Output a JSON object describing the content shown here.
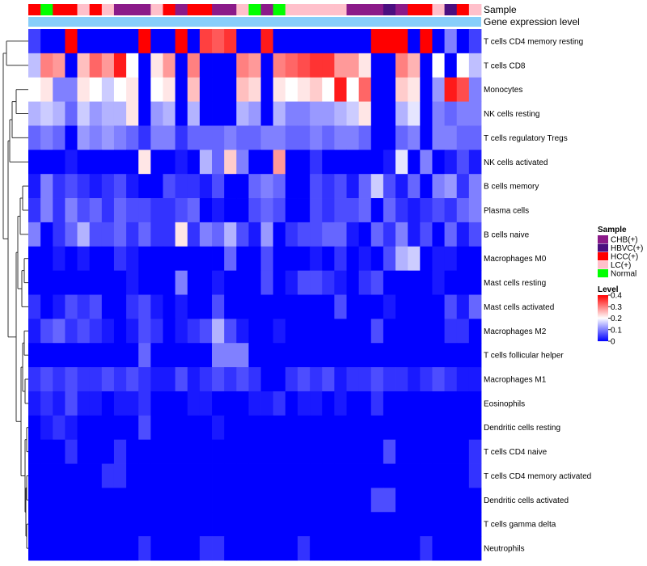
{
  "chart_data": {
    "type": "heatmap",
    "title": "",
    "annotation_labels": [
      "Sample",
      "Gene expression level"
    ],
    "sample_legend": {
      "title": "Sample",
      "entries": [
        {
          "label": "CHB(+)",
          "color": "#8B1A89"
        },
        {
          "label": "HBVC(+)",
          "color": "#4B0F80"
        },
        {
          "label": "HCC(+)",
          "color": "#FF0000"
        },
        {
          "label": "LC(+)",
          "color": "#FFC0CB"
        },
        {
          "label": "Normal",
          "color": "#00FF00"
        }
      ]
    },
    "level_legend": {
      "title": "Level",
      "ticks": [
        "0.4",
        "0.3",
        "0.2",
        "0.1",
        "0"
      ],
      "range": [
        0,
        0.4
      ]
    },
    "gene_expression_color": "#87CEFA",
    "samples": [
      "HCC(+)",
      "Normal",
      "HCC(+)",
      "HCC(+)",
      "LC(+)",
      "HCC(+)",
      "LC(+)",
      "CHB(+)",
      "CHB(+)",
      "CHB(+)",
      "LC(+)",
      "HCC(+)",
      "CHB(+)",
      "HCC(+)",
      "HCC(+)",
      "CHB(+)",
      "CHB(+)",
      "LC(+)",
      "Normal",
      "CHB(+)",
      "Normal",
      "LC(+)",
      "LC(+)",
      "LC(+)",
      "LC(+)",
      "LC(+)",
      "CHB(+)",
      "CHB(+)",
      "CHB(+)",
      "HBVC(+)",
      "CHB(+)",
      "HCC(+)",
      "HCC(+)",
      "LC(+)",
      "HBVC(+)",
      "HCC(+)",
      "LC(+)"
    ],
    "rows": [
      "T cells CD4 memory resting",
      "T cells CD8",
      "Monocytes",
      "NK cells resting",
      "T cells regulatory  Tregs",
      "NK cells activated",
      "B cells memory",
      "Plasma cells",
      "B cells naive",
      "Macrophages M0",
      "Mast cells resting",
      "Mast cells activated",
      "Macrophages M2",
      "T cells follicular helper",
      "Macrophages M1",
      "Eosinophils",
      "Dendritic cells resting",
      "T cells CD4 naive",
      "T cells CD4 memory activated",
      "Dendritic cells activated",
      "T cells gamma delta",
      "Neutrophils"
    ],
    "values": [
      [
        0.05,
        0.0,
        0.0,
        0.4,
        0.0,
        0.0,
        0.0,
        0.0,
        0.0,
        0.4,
        0.0,
        0.0,
        0.4,
        0.0,
        0.35,
        0.33,
        0.36,
        0.0,
        0.0,
        0.38,
        0.0,
        0.0,
        0.0,
        0.0,
        0.0,
        0.0,
        0.0,
        0.0,
        0.4,
        0.4,
        0.4,
        0.0,
        0.4,
        0.0,
        0.1,
        0.0,
        0.05
      ],
      [
        0.15,
        0.3,
        0.28,
        0.0,
        0.25,
        0.32,
        0.28,
        0.38,
        0.2,
        0.0,
        0.22,
        0.28,
        0.0,
        0.3,
        0.0,
        0.0,
        0.0,
        0.3,
        0.28,
        0.0,
        0.3,
        0.32,
        0.34,
        0.36,
        0.36,
        0.28,
        0.28,
        0.22,
        0.0,
        0.0,
        0.3,
        0.26,
        0.0,
        0.2,
        0.0,
        0.2,
        0.15
      ],
      [
        0.2,
        0.22,
        0.1,
        0.1,
        0.22,
        0.2,
        0.16,
        0.2,
        0.22,
        0.0,
        0.2,
        0.22,
        0.0,
        0.25,
        0.0,
        0.0,
        0.0,
        0.25,
        0.23,
        0.0,
        0.22,
        0.2,
        0.22,
        0.24,
        0.2,
        0.38,
        0.2,
        0.32,
        0.0,
        0.0,
        0.24,
        0.22,
        0.0,
        0.12,
        0.38,
        0.34,
        0.1
      ],
      [
        0.14,
        0.16,
        0.14,
        0.08,
        0.16,
        0.12,
        0.14,
        0.14,
        0.22,
        0.0,
        0.12,
        0.14,
        0.0,
        0.14,
        0.0,
        0.0,
        0.0,
        0.14,
        0.12,
        0.0,
        0.14,
        0.1,
        0.1,
        0.12,
        0.12,
        0.14,
        0.16,
        0.22,
        0.0,
        0.0,
        0.14,
        0.18,
        0.0,
        0.1,
        0.08,
        0.1,
        0.1
      ],
      [
        0.08,
        0.1,
        0.08,
        0.0,
        0.12,
        0.1,
        0.12,
        0.1,
        0.08,
        0.04,
        0.1,
        0.1,
        0.04,
        0.08,
        0.08,
        0.08,
        0.1,
        0.08,
        0.08,
        0.1,
        0.1,
        0.08,
        0.08,
        0.1,
        0.08,
        0.1,
        0.1,
        0.08,
        0.0,
        0.0,
        0.08,
        0.1,
        0.0,
        0.1,
        0.1,
        0.08,
        0.08
      ],
      [
        0.0,
        0.0,
        0.0,
        0.02,
        0.0,
        0.0,
        0.0,
        0.0,
        0.0,
        0.22,
        0.0,
        0.0,
        0.02,
        0.0,
        0.14,
        0.08,
        0.24,
        0.1,
        0.0,
        0.0,
        0.28,
        0.0,
        0.0,
        0.04,
        0.0,
        0.0,
        0.0,
        0.0,
        0.0,
        0.02,
        0.18,
        0.0,
        0.1,
        0.0,
        0.02,
        0.06,
        0.02
      ],
      [
        0.02,
        0.1,
        0.04,
        0.06,
        0.04,
        0.02,
        0.04,
        0.06,
        0.02,
        0.0,
        0.0,
        0.06,
        0.04,
        0.04,
        0.02,
        0.06,
        0.0,
        0.0,
        0.08,
        0.1,
        0.08,
        0.0,
        0.0,
        0.06,
        0.04,
        0.06,
        0.02,
        0.08,
        0.16,
        0.06,
        0.02,
        0.08,
        0.0,
        0.1,
        0.12,
        0.04,
        0.1
      ],
      [
        0.04,
        0.1,
        0.04,
        0.1,
        0.06,
        0.08,
        0.04,
        0.08,
        0.06,
        0.06,
        0.04,
        0.04,
        0.06,
        0.08,
        0.0,
        0.02,
        0.0,
        0.0,
        0.06,
        0.08,
        0.06,
        0.0,
        0.0,
        0.06,
        0.04,
        0.06,
        0.06,
        0.08,
        0.0,
        0.08,
        0.04,
        0.02,
        0.04,
        0.06,
        0.04,
        0.08,
        0.1
      ],
      [
        0.1,
        0.0,
        0.04,
        0.08,
        0.14,
        0.06,
        0.06,
        0.08,
        0.04,
        0.08,
        0.04,
        0.04,
        0.22,
        0.04,
        0.1,
        0.08,
        0.14,
        0.06,
        0.02,
        0.12,
        0.0,
        0.04,
        0.06,
        0.06,
        0.08,
        0.08,
        0.02,
        0.0,
        0.08,
        0.04,
        0.1,
        0.02,
        0.06,
        0.0,
        0.08,
        0.02,
        0.06
      ],
      [
        0.0,
        0.0,
        0.02,
        0.0,
        0.02,
        0.0,
        0.0,
        0.04,
        0.02,
        0.0,
        0.0,
        0.0,
        0.0,
        0.0,
        0.0,
        0.0,
        0.08,
        0.0,
        0.0,
        0.06,
        0.0,
        0.0,
        0.0,
        0.02,
        0.0,
        0.04,
        0.0,
        0.02,
        0.0,
        0.06,
        0.14,
        0.16,
        0.0,
        0.02,
        0.02,
        0.0,
        0.0
      ],
      [
        0.0,
        0.0,
        0.0,
        0.0,
        0.0,
        0.0,
        0.0,
        0.0,
        0.02,
        0.0,
        0.0,
        0.0,
        0.1,
        0.0,
        0.0,
        0.02,
        0.0,
        0.0,
        0.0,
        0.06,
        0.0,
        0.02,
        0.06,
        0.06,
        0.04,
        0.02,
        0.0,
        0.04,
        0.06,
        0.0,
        0.0,
        0.0,
        0.0,
        0.02,
        0.0,
        0.0,
        0.0
      ],
      [
        0.04,
        0.0,
        0.02,
        0.06,
        0.04,
        0.06,
        0.0,
        0.0,
        0.04,
        0.06,
        0.02,
        0.0,
        0.02,
        0.0,
        0.0,
        0.06,
        0.0,
        0.0,
        0.0,
        0.0,
        0.0,
        0.0,
        0.0,
        0.0,
        0.0,
        0.06,
        0.0,
        0.0,
        0.0,
        0.02,
        0.0,
        0.0,
        0.0,
        0.0,
        0.06,
        0.02,
        0.08
      ],
      [
        0.02,
        0.06,
        0.08,
        0.04,
        0.06,
        0.04,
        0.02,
        0.0,
        0.02,
        0.06,
        0.04,
        0.0,
        0.02,
        0.04,
        0.06,
        0.14,
        0.06,
        0.02,
        0.0,
        0.0,
        0.02,
        0.0,
        0.0,
        0.0,
        0.0,
        0.0,
        0.0,
        0.0,
        0.06,
        0.0,
        0.0,
        0.0,
        0.0,
        0.0,
        0.04,
        0.04,
        0.0
      ],
      [
        0.0,
        0.0,
        0.0,
        0.0,
        0.0,
        0.0,
        0.0,
        0.0,
        0.0,
        0.08,
        0.0,
        0.0,
        0.0,
        0.0,
        0.0,
        0.1,
        0.1,
        0.1,
        0.0,
        0.0,
        0.0,
        0.0,
        0.0,
        0.0,
        0.0,
        0.0,
        0.0,
        0.0,
        0.0,
        0.0,
        0.0,
        0.0,
        0.0,
        0.0,
        0.0,
        0.0,
        0.0
      ],
      [
        0.04,
        0.06,
        0.04,
        0.06,
        0.04,
        0.04,
        0.06,
        0.04,
        0.06,
        0.04,
        0.02,
        0.02,
        0.06,
        0.02,
        0.04,
        0.06,
        0.04,
        0.06,
        0.04,
        0.0,
        0.0,
        0.04,
        0.06,
        0.04,
        0.06,
        0.02,
        0.04,
        0.04,
        0.06,
        0.04,
        0.04,
        0.02,
        0.04,
        0.06,
        0.04,
        0.02,
        0.02
      ],
      [
        0.02,
        0.04,
        0.02,
        0.06,
        0.02,
        0.02,
        0.0,
        0.02,
        0.02,
        0.04,
        0.0,
        0.0,
        0.0,
        0.02,
        0.02,
        0.0,
        0.0,
        0.0,
        0.02,
        0.02,
        0.04,
        0.0,
        0.02,
        0.02,
        0.0,
        0.02,
        0.0,
        0.0,
        0.04,
        0.0,
        0.0,
        0.0,
        0.0,
        0.0,
        0.0,
        0.0,
        0.0
      ],
      [
        0.0,
        0.02,
        0.04,
        0.02,
        0.0,
        0.0,
        0.0,
        0.0,
        0.0,
        0.06,
        0.0,
        0.0,
        0.0,
        0.0,
        0.0,
        0.02,
        0.0,
        0.0,
        0.0,
        0.0,
        0.0,
        0.0,
        0.0,
        0.0,
        0.0,
        0.0,
        0.0,
        0.0,
        0.0,
        0.0,
        0.0,
        0.0,
        0.0,
        0.0,
        0.0,
        0.0,
        0.0
      ],
      [
        0.0,
        0.0,
        0.0,
        0.04,
        0.0,
        0.0,
        0.0,
        0.04,
        0.0,
        0.0,
        0.0,
        0.0,
        0.0,
        0.0,
        0.0,
        0.0,
        0.0,
        0.0,
        0.0,
        0.0,
        0.0,
        0.0,
        0.0,
        0.0,
        0.0,
        0.0,
        0.0,
        0.0,
        0.0,
        0.06,
        0.0,
        0.0,
        0.0,
        0.0,
        0.0,
        0.0,
        0.04
      ],
      [
        0.0,
        0.0,
        0.0,
        0.0,
        0.0,
        0.0,
        0.04,
        0.04,
        0.0,
        0.0,
        0.0,
        0.0,
        0.0,
        0.0,
        0.0,
        0.0,
        0.0,
        0.0,
        0.0,
        0.0,
        0.0,
        0.0,
        0.0,
        0.0,
        0.0,
        0.0,
        0.0,
        0.0,
        0.0,
        0.0,
        0.0,
        0.0,
        0.0,
        0.0,
        0.0,
        0.0,
        0.04
      ],
      [
        0.0,
        0.0,
        0.0,
        0.0,
        0.0,
        0.0,
        0.0,
        0.0,
        0.0,
        0.0,
        0.0,
        0.0,
        0.0,
        0.0,
        0.0,
        0.0,
        0.0,
        0.0,
        0.0,
        0.0,
        0.0,
        0.0,
        0.0,
        0.0,
        0.0,
        0.0,
        0.0,
        0.0,
        0.06,
        0.06,
        0.0,
        0.0,
        0.0,
        0.0,
        0.0,
        0.0,
        0.0
      ],
      [
        0.0,
        0.0,
        0.0,
        0.0,
        0.0,
        0.0,
        0.0,
        0.0,
        0.0,
        0.0,
        0.0,
        0.0,
        0.0,
        0.0,
        0.0,
        0.0,
        0.0,
        0.0,
        0.0,
        0.0,
        0.0,
        0.0,
        0.0,
        0.0,
        0.0,
        0.0,
        0.0,
        0.0,
        0.0,
        0.0,
        0.0,
        0.0,
        0.0,
        0.0,
        0.0,
        0.0,
        0.0
      ],
      [
        0.0,
        0.0,
        0.0,
        0.0,
        0.0,
        0.0,
        0.0,
        0.0,
        0.0,
        0.04,
        0.0,
        0.0,
        0.0,
        0.0,
        0.04,
        0.04,
        0.0,
        0.0,
        0.0,
        0.0,
        0.0,
        0.0,
        0.04,
        0.0,
        0.0,
        0.0,
        0.0,
        0.0,
        0.0,
        0.0,
        0.0,
        0.0,
        0.04,
        0.0,
        0.0,
        0.0,
        0.0
      ]
    ]
  }
}
